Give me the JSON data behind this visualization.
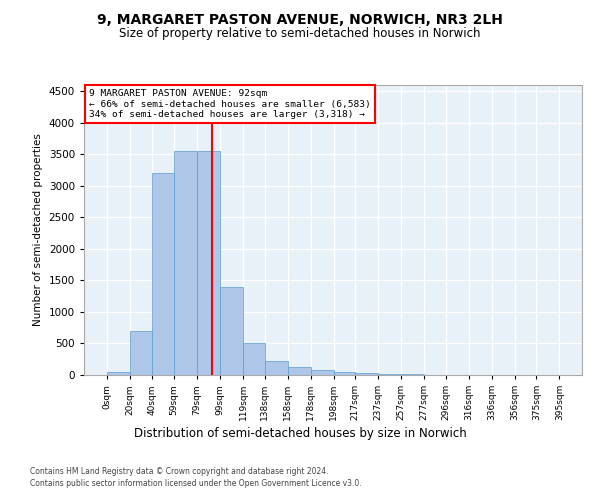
{
  "title": "9, MARGARET PASTON AVENUE, NORWICH, NR3 2LH",
  "subtitle": "Size of property relative to semi-detached houses in Norwich",
  "xlabel_bottom": "Distribution of semi-detached houses by size in Norwich",
  "ylabel": "Number of semi-detached properties",
  "annotation_line1": "9 MARGARET PASTON AVENUE: 92sqm",
  "annotation_line2": "← 66% of semi-detached houses are smaller (6,583)",
  "annotation_line3": "34% of semi-detached houses are larger (3,318) →",
  "bin_edges": [
    0,
    20,
    40,
    59,
    79,
    99,
    119,
    138,
    158,
    178,
    198,
    217,
    237,
    257,
    277,
    296,
    316,
    336,
    356,
    375,
    395
  ],
  "bar_heights": [
    55,
    700,
    3200,
    3550,
    3550,
    1400,
    500,
    230,
    130,
    80,
    50,
    30,
    20,
    10,
    5,
    3,
    2,
    1,
    1,
    0
  ],
  "bar_color": "#aec6e8",
  "bar_edge_color": "#5a9fd4",
  "red_line_x": 92,
  "ylim": [
    0,
    4600
  ],
  "yticks": [
    0,
    500,
    1000,
    1500,
    2000,
    2500,
    3000,
    3500,
    4000,
    4500
  ],
  "plot_bg_color": "#e8f0f8",
  "grid_color": "#ffffff",
  "footer_line1": "Contains HM Land Registry data © Crown copyright and database right 2024.",
  "footer_line2": "Contains public sector information licensed under the Open Government Licence v3.0."
}
